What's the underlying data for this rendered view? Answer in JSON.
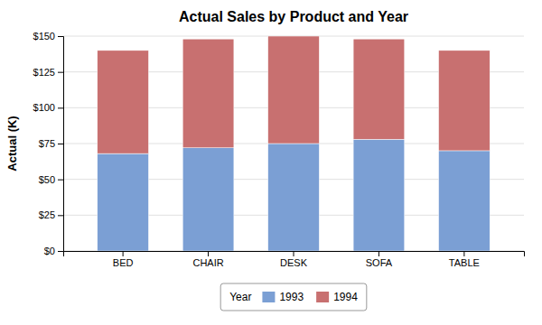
{
  "chart_data": {
    "type": "bar",
    "stacked": true,
    "title": "Actual Sales by Product and Year",
    "ylabel": "Actual (K)",
    "categories": [
      "BED",
      "CHAIR",
      "DESK",
      "SOFA",
      "TABLE"
    ],
    "series": [
      {
        "name": "1993",
        "color": "#7b9fd4",
        "values": [
          68,
          72,
          75,
          78,
          70
        ]
      },
      {
        "name": "1994",
        "color": "#c87070",
        "values": [
          72,
          76,
          75,
          70,
          70
        ]
      }
    ],
    "ylim": [
      0,
      150
    ],
    "yticks": [
      {
        "value": 0,
        "label": "$0"
      },
      {
        "value": 25,
        "label": "$25"
      },
      {
        "value": 50,
        "label": "$50"
      },
      {
        "value": 75,
        "label": "$75"
      },
      {
        "value": 100,
        "label": "$100"
      },
      {
        "value": 125,
        "label": "$125"
      },
      {
        "value": 150,
        "label": "$150"
      }
    ],
    "grid": true,
    "legend": "bottom",
    "legend_title": "Year"
  }
}
